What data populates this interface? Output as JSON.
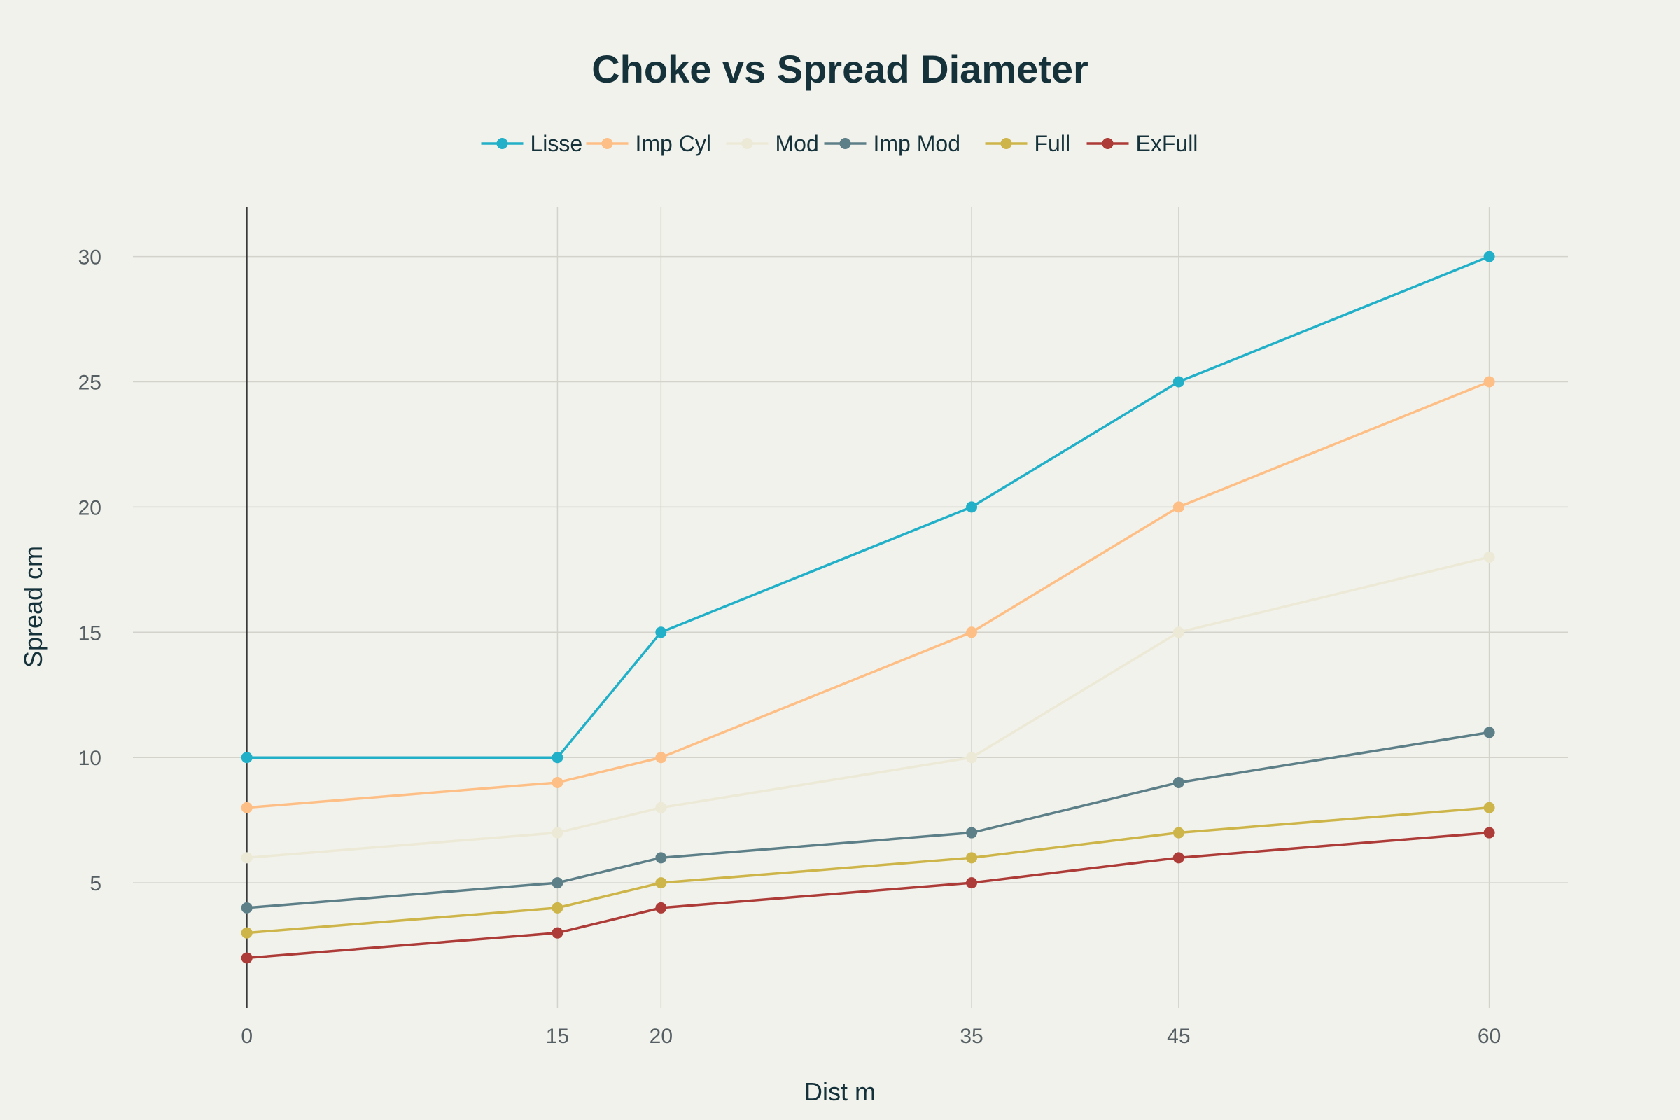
{
  "chart_data": {
    "type": "line",
    "title": "Choke vs Spread Diameter",
    "xlabel": "Dist m",
    "ylabel": "Spread cm",
    "x": [
      0,
      15,
      20,
      35,
      45,
      60
    ],
    "x_ticks": [
      "0",
      "15",
      "20",
      "35",
      "45",
      "60"
    ],
    "y_ticks": [
      "5",
      "10",
      "15",
      "20",
      "25",
      "30"
    ],
    "xlim": [
      -5.5,
      63.8
    ],
    "ylim": [
      0,
      32
    ],
    "grid": true,
    "legend_position": "top-center",
    "background": "#f2f2ec",
    "series": [
      {
        "name": "Lisse",
        "color": "#22b0c8",
        "values": [
          10,
          10,
          15,
          20,
          25,
          30
        ]
      },
      {
        "name": "Imp Cyl",
        "color": "#fdbf86",
        "values": [
          8,
          9,
          10,
          15,
          20,
          25
        ]
      },
      {
        "name": "Mod",
        "color": "#ece9d6",
        "values": [
          6,
          7,
          8,
          10,
          15,
          18
        ]
      },
      {
        "name": "Imp Mod",
        "color": "#5c7f88",
        "values": [
          4,
          5,
          6,
          7,
          9,
          11
        ]
      },
      {
        "name": "Full",
        "color": "#cdb54a",
        "values": [
          3,
          4,
          5,
          6,
          7,
          8
        ]
      },
      {
        "name": "ExFull",
        "color": "#ad3b37",
        "values": [
          2,
          3,
          4,
          5,
          6,
          7
        ]
      }
    ]
  }
}
